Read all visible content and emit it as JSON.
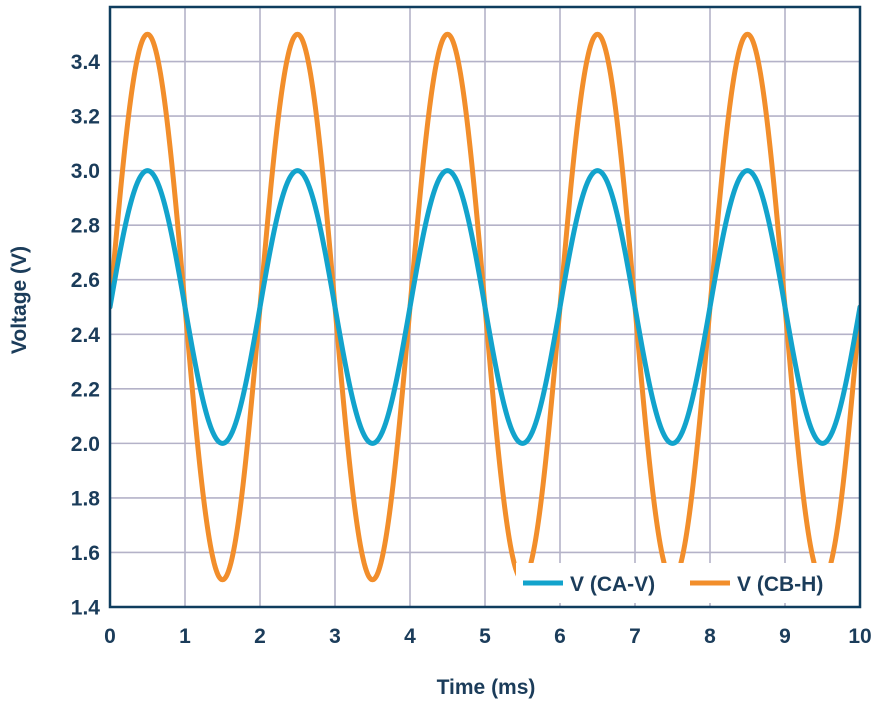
{
  "chart_data": {
    "type": "line",
    "title": "",
    "xlabel": "Time (ms)",
    "ylabel": "Voltage (V)",
    "xlim": [
      0,
      10
    ],
    "ylim": [
      1.4,
      3.6
    ],
    "x_ticks": [
      0,
      1,
      2,
      3,
      4,
      5,
      6,
      7,
      8,
      9,
      10
    ],
    "x_tick_labels": [
      "0",
      "1",
      "2",
      "3",
      "4",
      "5",
      "6",
      "7",
      "8",
      "9",
      "10"
    ],
    "y_ticks": [
      1.4,
      1.6,
      1.8,
      2.0,
      2.2,
      2.4,
      2.6,
      2.8,
      3.0,
      3.2,
      3.4
    ],
    "y_tick_labels": [
      "1.4",
      "1.6",
      "1.8",
      "2.0",
      "2.2",
      "2.4",
      "2.6",
      "2.8",
      "3.0",
      "3.2",
      "3.4"
    ],
    "grid": true,
    "legend_position": "bottom-right",
    "series": [
      {
        "name": "V (CA-V)",
        "color": "#12a3cc",
        "x": [
          0,
          0.25,
          0.5,
          0.75,
          1,
          1.25,
          1.5,
          1.75,
          2,
          2.25,
          2.5,
          2.75,
          3,
          3.25,
          3.5,
          3.75,
          4,
          4.25,
          4.5,
          4.75,
          5,
          5.25,
          5.5,
          5.75,
          6,
          6.25,
          6.5,
          6.75,
          7,
          7.25,
          7.5,
          7.75,
          8,
          8.25,
          8.5,
          8.75,
          9,
          9.25,
          9.5,
          9.75,
          10
        ],
        "y": [
          2.5,
          2.85,
          3.0,
          2.85,
          2.5,
          2.15,
          2.0,
          2.15,
          2.5,
          2.85,
          3.0,
          2.85,
          2.5,
          2.15,
          2.0,
          2.15,
          2.5,
          2.85,
          3.0,
          2.85,
          2.5,
          2.15,
          2.0,
          2.15,
          2.5,
          2.85,
          3.0,
          2.85,
          2.5,
          2.15,
          2.0,
          2.15,
          2.5,
          2.85,
          3.0,
          2.85,
          2.5,
          2.15,
          2.0,
          2.15,
          2.5
        ]
      },
      {
        "name": "V (CB-H)",
        "color": "#f28e2b",
        "x": [
          0,
          0.25,
          0.5,
          0.75,
          1,
          1.25,
          1.5,
          1.75,
          2,
          2.25,
          2.5,
          2.75,
          3,
          3.25,
          3.5,
          3.75,
          4,
          4.25,
          4.5,
          4.75,
          5,
          5.25,
          5.5,
          5.75,
          6,
          6.25,
          6.5,
          6.75,
          7,
          7.25,
          7.5,
          7.75,
          8,
          8.25,
          8.5,
          8.75,
          9,
          9.25,
          9.5,
          9.75,
          10
        ],
        "y": [
          2.5,
          3.21,
          3.5,
          3.21,
          2.5,
          1.79,
          1.5,
          1.79,
          2.5,
          3.21,
          3.5,
          3.21,
          2.5,
          1.79,
          1.5,
          1.79,
          2.5,
          3.21,
          3.5,
          3.21,
          2.5,
          1.79,
          1.5,
          1.79,
          2.5,
          3.21,
          3.5,
          3.21,
          2.5,
          1.79,
          1.5,
          1.79,
          2.5,
          3.21,
          3.5,
          3.21,
          2.5,
          1.79,
          1.5,
          1.79,
          2.5
        ]
      }
    ]
  },
  "colors": {
    "frame": "#0f3d5e",
    "grid": "#b4b2c8",
    "text": "#1b3c5a",
    "background": "#ffffff"
  }
}
